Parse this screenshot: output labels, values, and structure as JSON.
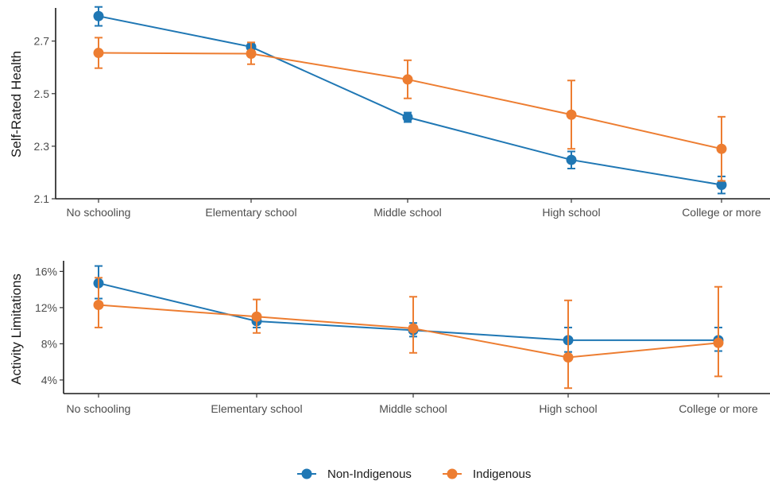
{
  "legend": {
    "items": [
      {
        "label": "Non-Indigenous",
        "color": "#1f77b4"
      },
      {
        "label": "Indigenous",
        "color": "#ed7d31"
      }
    ]
  },
  "chart_data": [
    {
      "type": "line",
      "ylabel": "Self-Rated Health",
      "categories": [
        "No schooling",
        "Elementary school",
        "Middle school",
        "High school",
        "College or more"
      ],
      "ylim": [
        2.1,
        2.82
      ],
      "yticks": [
        2.1,
        2.3,
        2.5,
        2.7
      ],
      "ytick_labels": [
        "2.1",
        "2.3",
        "2.5",
        "2.7"
      ],
      "series": [
        {
          "name": "Non-Indigenous",
          "color": "#1f77b4",
          "values": [
            2.795,
            2.678,
            2.41,
            2.248,
            2.153
          ],
          "lower": [
            2.758,
            2.668,
            2.392,
            2.215,
            2.12
          ],
          "upper": [
            2.83,
            2.688,
            2.428,
            2.28,
            2.185
          ]
        },
        {
          "name": "Indigenous",
          "color": "#ed7d31",
          "values": [
            2.655,
            2.652,
            2.554,
            2.42,
            2.29
          ],
          "lower": [
            2.597,
            2.612,
            2.482,
            2.29,
            2.168
          ],
          "upper": [
            2.713,
            2.695,
            2.627,
            2.55,
            2.412
          ]
        }
      ]
    },
    {
      "type": "line",
      "ylabel": "Activity Limitations",
      "categories": [
        "No schooling",
        "Elementary school",
        "Middle school",
        "High school",
        "College or more"
      ],
      "ylim": [
        2.5,
        17.0
      ],
      "yticks": [
        4,
        8,
        12,
        16
      ],
      "ytick_labels": [
        "4%",
        "8%",
        "12%",
        "16%"
      ],
      "series": [
        {
          "name": "Non-Indigenous",
          "color": "#1f77b4",
          "values": [
            14.7,
            10.5,
            9.5,
            8.4,
            8.4
          ],
          "lower": [
            13.0,
            9.8,
            8.8,
            7.1,
            7.2
          ],
          "upper": [
            16.6,
            11.2,
            10.3,
            9.8,
            9.8
          ]
        },
        {
          "name": "Indigenous",
          "color": "#ed7d31",
          "values": [
            12.3,
            11.0,
            9.7,
            6.5,
            8.1
          ],
          "lower": [
            9.8,
            9.2,
            7.0,
            3.1,
            4.4
          ],
          "upper": [
            15.3,
            12.9,
            13.2,
            12.8,
            14.3
          ]
        }
      ]
    }
  ]
}
